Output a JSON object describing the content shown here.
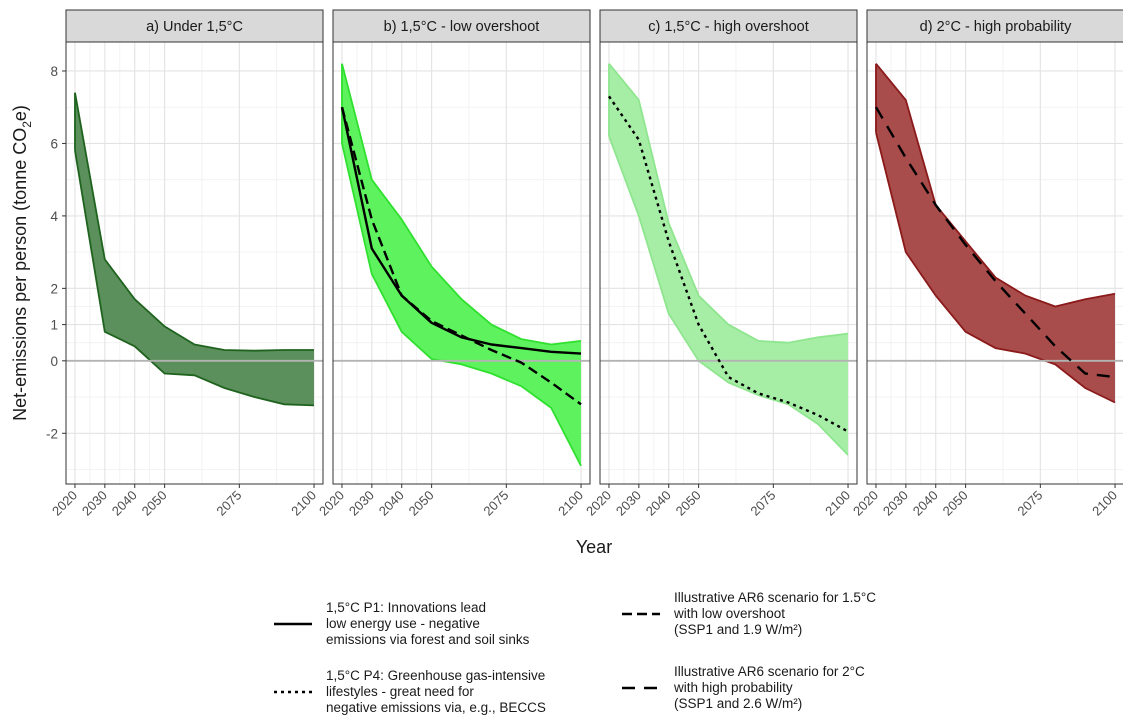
{
  "chart_data": {
    "type": "area",
    "xlabel": "Year",
    "ylabel_parts": [
      "Net-emissions per person (tonne CO",
      "2",
      "e)"
    ],
    "x_ticks": [
      2020,
      2030,
      2040,
      2050,
      2075,
      2100
    ],
    "xlim": [
      2017,
      2103
    ],
    "y_ticks": [
      -2,
      0,
      1,
      2,
      4,
      6,
      8
    ],
    "ylim": [
      -3.4,
      8.8
    ],
    "grid": true,
    "legend_position": "bottom",
    "x": [
      2020,
      2030,
      2040,
      2050,
      2060,
      2070,
      2080,
      2090,
      2100
    ],
    "panels": [
      {
        "title": "a) Under 1,5°C",
        "band_color": "#5b8f5b",
        "line_color": "#1f631f",
        "band_opacity": 1.0,
        "upper": [
          7.4,
          2.8,
          1.7,
          0.95,
          0.45,
          0.3,
          0.28,
          0.3,
          0.3
        ],
        "lower": [
          5.8,
          0.8,
          0.4,
          -0.35,
          -0.4,
          -0.75,
          -1.0,
          -1.2,
          -1.23
        ],
        "lines": []
      },
      {
        "title": "b) 1,5°C - low overshoot",
        "band_color": "#5ef25e",
        "line_color": "#2fe02f",
        "band_opacity": 1.0,
        "upper": [
          8.2,
          5.0,
          3.9,
          2.6,
          1.7,
          1.0,
          0.6,
          0.45,
          0.55
        ],
        "lower": [
          6.0,
          2.4,
          0.8,
          0.05,
          -0.1,
          -0.35,
          -0.7,
          -1.3,
          -2.9
        ],
        "lines": [
          {
            "name": "1,5°C P1",
            "style": "solid",
            "values": [
              7.0,
              3.1,
              1.8,
              1.05,
              0.65,
              0.45,
              0.35,
              0.25,
              0.2
            ]
          },
          {
            "name": "AR6 low overshoot",
            "style": "longdash",
            "values": [
              7.0,
              3.9,
              1.8,
              1.1,
              0.7,
              0.3,
              -0.05,
              -0.6,
              -1.2
            ]
          }
        ]
      },
      {
        "title": "c) 1,5°C - high overshoot",
        "band_color": "#a6eda6",
        "line_color": "#8fe68f",
        "band_opacity": 1.0,
        "upper": [
          8.2,
          7.2,
          3.8,
          1.8,
          1.0,
          0.55,
          0.5,
          0.65,
          0.75
        ],
        "lower": [
          6.2,
          4.0,
          1.3,
          0.0,
          -0.6,
          -0.95,
          -1.2,
          -1.75,
          -2.6
        ],
        "lines": [
          {
            "name": "1,5°C P4",
            "style": "dotted",
            "values": [
              7.3,
              6.1,
              3.3,
              1.0,
              -0.45,
              -0.9,
              -1.15,
              -1.5,
              -1.95
            ]
          }
        ]
      },
      {
        "title": "d) 2°C - high probability",
        "band_color": "#a94c4c",
        "line_color": "#8b1a1a",
        "band_opacity": 1.0,
        "upper": [
          8.2,
          7.2,
          4.3,
          3.3,
          2.3,
          1.8,
          1.5,
          1.7,
          1.85
        ],
        "lower": [
          6.3,
          3.0,
          1.8,
          0.8,
          0.35,
          0.2,
          -0.1,
          -0.75,
          -1.15
        ],
        "lines": [
          {
            "name": "AR6 2C high probability",
            "style": "dash",
            "values": [
              7.0,
              5.6,
              4.3,
              3.2,
              2.2,
              1.3,
              0.4,
              -0.35,
              -0.45
            ]
          }
        ]
      }
    ]
  },
  "legend": [
    {
      "style": "solid",
      "label": "1,5°C P1: Innovations lead\nlow energy use - negative\nemissions via forest and soil sinks"
    },
    {
      "style": "longdash",
      "label": "Illustrative AR6 scenario for 1.5°C\nwith low overshoot\n(SSP1 and 1.9 W/m²)"
    },
    {
      "style": "dotted",
      "label": "1,5°C P4: Greenhouse gas-intensive\nlifestyles - great need for\nnegative emissions via, e.g., BECCS"
    },
    {
      "style": "dash",
      "label": "Illustrative AR6 scenario for 2°C\nwith high probability\n(SSP1 and 2.6 W/m²)"
    }
  ]
}
